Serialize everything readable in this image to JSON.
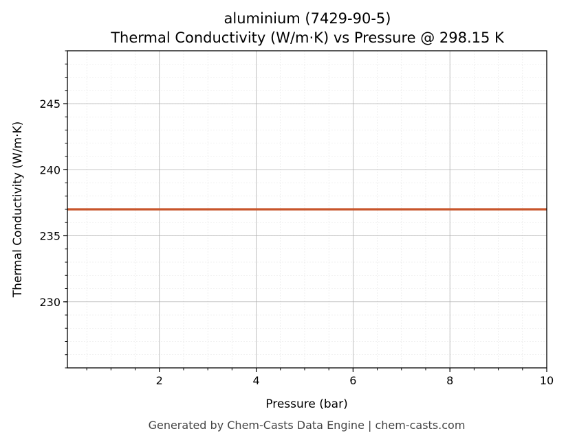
{
  "chart_data": {
    "type": "line",
    "title": "aluminium (7429-90-5)",
    "subtitle": "Thermal Conductivity (W/m·K) vs Pressure @ 298.15 K",
    "xlabel": "Pressure (bar)",
    "ylabel": "Thermal Conductivity (W/m·K)",
    "xlim": [
      0.1,
      10
    ],
    "ylim": [
      225,
      249
    ],
    "xticks": [
      2,
      4,
      6,
      8,
      10
    ],
    "xtick_labels": [
      "2",
      "4",
      "6",
      "8",
      "10"
    ],
    "yticks": [
      230,
      235,
      240,
      245
    ],
    "ytick_labels": [
      "230",
      "235",
      "240",
      "245"
    ],
    "grid": true,
    "minor_grid": true,
    "series": [
      {
        "color": "#c8552b",
        "x": [
          0.1,
          10
        ],
        "y": [
          237,
          237
        ]
      }
    ]
  },
  "footer": "Generated by Chem-Casts Data Engine | chem-casts.com"
}
